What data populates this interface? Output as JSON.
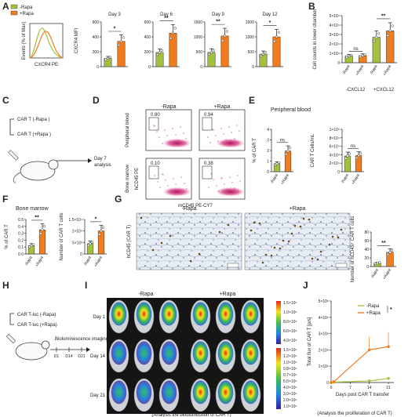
{
  "panels": [
    "A",
    "B",
    "C",
    "D",
    "E",
    "F",
    "G",
    "H",
    "I",
    "J"
  ],
  "colors": {
    "minus": "#a3c13a",
    "plus": "#ef7d1f"
  },
  "legend": {
    "minus": "-Rapa",
    "plus": "+Rapa"
  },
  "A": {
    "flow": {
      "ylabel": "Events (% of Max)",
      "xlabel": "CXCR4  PE"
    },
    "ylabel": "CXCR4 MFI",
    "charts": [
      {
        "title": "Day 3",
        "yticks": [
          "0",
          "200",
          "400",
          "600"
        ],
        "ymax": 600,
        "values": [
          110,
          340
        ],
        "sig": "*"
      },
      {
        "title": "Day 6",
        "yticks": [
          "0",
          "200",
          "400",
          "600"
        ],
        "ymax": 600,
        "values": [
          190,
          450
        ],
        "sig": "**"
      },
      {
        "title": "Day 9",
        "yticks": [
          "0",
          "500",
          "1000",
          "1500"
        ],
        "ymax": 1500,
        "values": [
          480,
          1030
        ],
        "sig": "**"
      },
      {
        "title": "Day 12",
        "yticks": [
          "0",
          "500",
          "1000",
          "1500"
        ],
        "ymax": 1500,
        "values": [
          420,
          1000
        ],
        "sig": "*"
      }
    ]
  },
  "chart_data": [
    {
      "type": "bar",
      "panel": "B",
      "ylabel": "Cell counts in lower chamber",
      "categories": [
        "-Rapa",
        "+Rapa",
        "-Rapa",
        "+Rapa"
      ],
      "groups": [
        "-CXCL12",
        "+CXCL12"
      ],
      "yticks": [
        "0",
        "1×10⁴",
        "2×10⁴",
        "3×10⁴",
        "4×10⁴",
        "5×10⁴"
      ],
      "ylim": [
        0,
        50000
      ],
      "values": [
        7000,
        7500,
        27000,
        34000
      ],
      "sig": [
        "ns",
        "**"
      ]
    },
    {
      "type": "bar",
      "panel": "E1",
      "title": "Peripheral blood",
      "ylabel": "% of CAR T",
      "categories": [
        "-Rapa",
        "+Rapa"
      ],
      "yticks": [
        "0",
        "1",
        "2",
        "3",
        "4"
      ],
      "ylim": [
        0,
        4
      ],
      "values": [
        0.75,
        1.95
      ],
      "sig": "ns"
    },
    {
      "type": "bar",
      "panel": "E2",
      "ylabel": "CAR T Cells/mL",
      "categories": [
        "-Rapa",
        "+Rapa"
      ],
      "yticks": [
        "0",
        "2×10⁴",
        "4×10⁴",
        "6×10⁴",
        "8×10⁴",
        "1×10⁵"
      ],
      "ylim": [
        0,
        100000
      ],
      "values": [
        37000,
        38000
      ],
      "sig": "ns"
    },
    {
      "type": "bar",
      "panel": "F1",
      "title": "Bone marrow",
      "ylabel": "% of CAR T",
      "categories": [
        "-Rapa",
        "+Rapa"
      ],
      "yticks": [
        "0.0",
        "0.1",
        "0.2",
        "0.3",
        "0.4",
        "0.5"
      ],
      "ylim": [
        0,
        0.5
      ],
      "values": [
        0.12,
        0.35
      ],
      "sig": "**"
    },
    {
      "type": "bar",
      "panel": "F2",
      "ylabel": "Number of CAR T cells",
      "categories": [
        "-Rapa",
        "+Rapa"
      ],
      "yticks": [
        "0",
        "5×10³",
        "1×10⁴",
        "1.5×10⁴"
      ],
      "ylim": [
        0,
        15000
      ],
      "values": [
        4500,
        10000
      ],
      "sig": "*"
    },
    {
      "type": "bar",
      "panel": "G",
      "ylabel": "Number of hCD45⁺ CAR T cells",
      "categories": [
        "-Rapa",
        "+Rapa"
      ],
      "yticks": [
        "0",
        "20",
        "40",
        "60",
        "80"
      ],
      "ylim": [
        0,
        80
      ],
      "values": [
        8,
        33
      ],
      "sig": "**"
    },
    {
      "type": "line",
      "panel": "J",
      "xlabel": "Days post CAR T transfer",
      "ylabel": "Total flux of CAR T [p/s]",
      "x": [
        0,
        1,
        14,
        21
      ],
      "xticks": [
        "0",
        "7",
        "14",
        "21"
      ],
      "yticks": [
        "0",
        "1×10⁸",
        "2×10⁸",
        "3×10⁸",
        "4×10⁸",
        "5×10⁸"
      ],
      "ylim": [
        0,
        500000000
      ],
      "xlim": [
        0,
        23
      ],
      "series": [
        {
          "name": "-Rapa",
          "values": [
            0,
            2000000,
            10000000,
            25000000
          ]
        },
        {
          "name": "+Rapa",
          "values": [
            0,
            5000000,
            200000000,
            220000000
          ]
        }
      ],
      "sig": "*"
    }
  ],
  "C": {
    "labels": [
      "CAR T (-Rapa )",
      "CAR T (+Rapa )"
    ],
    "arrow": "Day 7\nanalysis"
  },
  "D": {
    "cols": [
      "-Rapa",
      "+Rapa"
    ],
    "rows": [
      "Peripheral blood",
      "Bone marrow"
    ],
    "ylabel": "hCD45 PE",
    "xlabel": "mCD45  PE-CY7",
    "gates": [
      [
        "0.80",
        "0.94"
      ],
      [
        "0.10",
        "0.38"
      ]
    ]
  },
  "E": {
    "title": "Peripheral blood"
  },
  "F": {
    "title": "Bone marrow"
  },
  "G": {
    "cols": [
      "-Rapa",
      "+Rapa"
    ],
    "ylabel": "hCD45 (CAR T)"
  },
  "H": {
    "labels": [
      "CAR T-luc (-Rapa)",
      "CAR T-luc (+Rapa)"
    ],
    "task": "Bioluminescence imaging",
    "ticks": [
      "D1",
      "D14",
      "D21"
    ],
    "caption": "(Analysis the biodistribution of CAR T)"
  },
  "I": {
    "cols": [
      "-Rapa",
      "+Rapa"
    ],
    "rows": [
      "Day 1",
      "Day 14",
      "Day 21"
    ],
    "scale_top": [
      "1.5×10⁵",
      "1.0×10⁵",
      "8.0×10⁴",
      "6.0×10⁴",
      "4.0×10⁴"
    ],
    "scale_bottom": [
      "1.5×10⁶",
      "1.2×10⁶",
      "1.0×10⁶",
      "0.8×10⁶",
      "0.7×10⁶",
      "5.0×10⁶",
      "4.0×10⁶",
      "3.0×10⁶",
      "2.0×10⁶",
      "1.0×10⁶"
    ],
    "caption": "(Analysis the biodistribution of CAR T)"
  },
  "J": {
    "caption": "(Analysis the proliferation of CAR T)"
  }
}
